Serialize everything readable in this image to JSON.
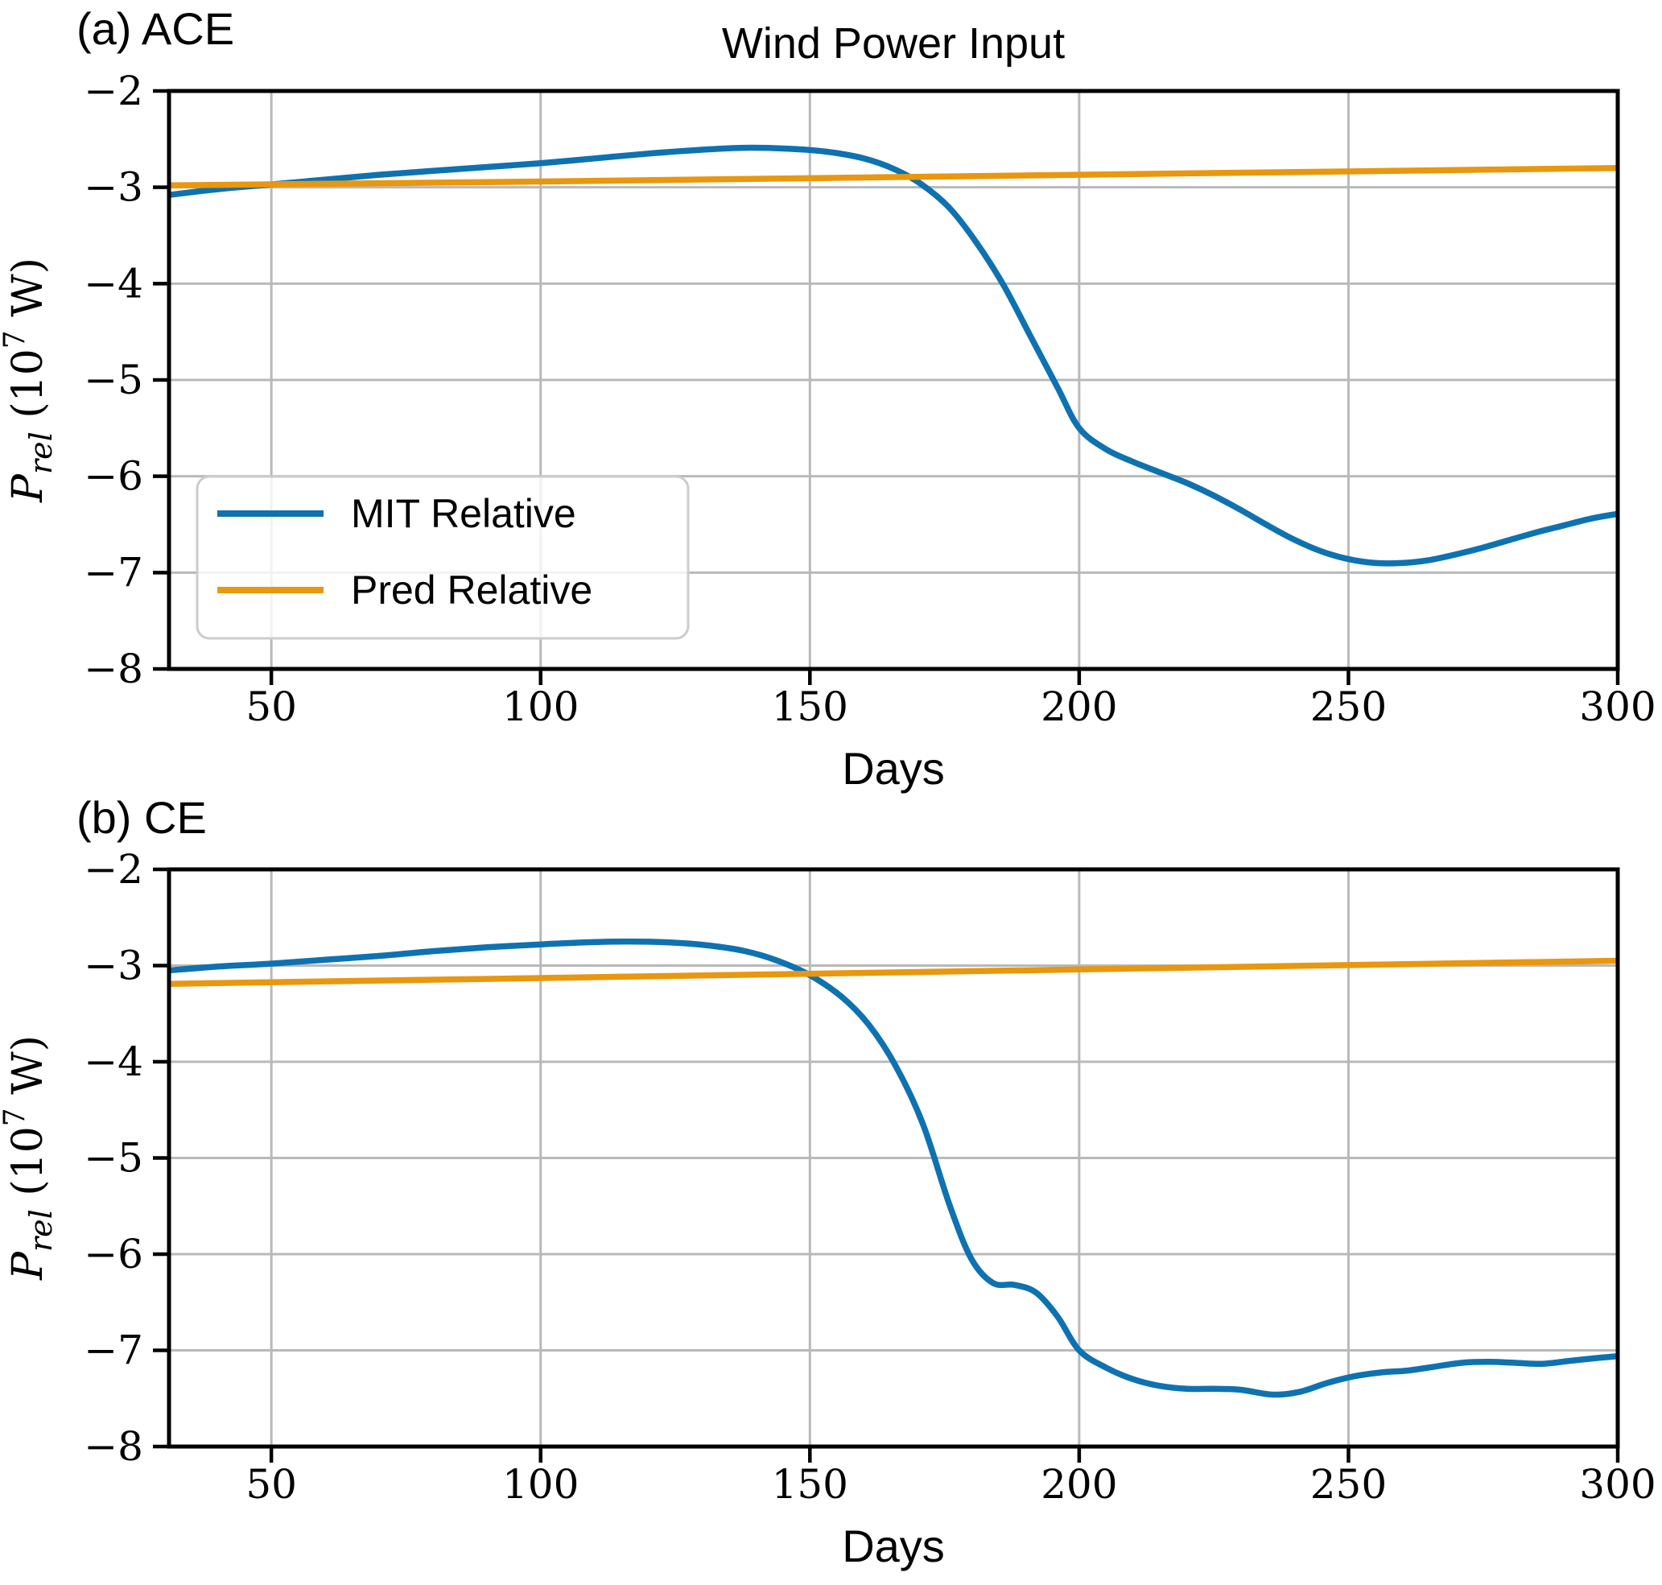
{
  "figure": {
    "background": "#ffffff",
    "grid_color": "#b9b9b9",
    "spine_color": "#000000",
    "legend_border_color": "#cccccc",
    "ylabel_parts": {
      "p": "P",
      "sub": "rel",
      "mid": " (10",
      "exp": "7",
      "end": " W)"
    }
  },
  "chart_data": [
    {
      "type": "line",
      "panel_label": "(a) ACE",
      "title": "Wind Power Input",
      "xlabel": "Days",
      "ylabel": "P_rel (10^7 W)",
      "xlim": [
        31,
        300
      ],
      "ylim": [
        -8,
        -2
      ],
      "xticks": [
        50,
        100,
        150,
        200,
        250,
        300
      ],
      "yticks": [
        -2,
        -3,
        -4,
        -5,
        -6,
        -7,
        -8
      ],
      "grid": true,
      "legend": {
        "position": "lower-left",
        "entries": [
          "MIT Relative",
          "Pred Relative"
        ]
      },
      "series": [
        {
          "name": "MIT Relative",
          "color": "#0e72b1",
          "points": [
            [
              31,
              -3.08
            ],
            [
              40,
              -3.02
            ],
            [
              50,
              -2.97
            ],
            [
              60,
              -2.92
            ],
            [
              70,
              -2.87
            ],
            [
              80,
              -2.83
            ],
            [
              90,
              -2.79
            ],
            [
              100,
              -2.75
            ],
            [
              110,
              -2.7
            ],
            [
              120,
              -2.65
            ],
            [
              130,
              -2.61
            ],
            [
              138,
              -2.59
            ],
            [
              146,
              -2.6
            ],
            [
              153,
              -2.63
            ],
            [
              160,
              -2.7
            ],
            [
              166,
              -2.82
            ],
            [
              171,
              -2.98
            ],
            [
              176,
              -3.22
            ],
            [
              181,
              -3.58
            ],
            [
              186,
              -4.02
            ],
            [
              191,
              -4.55
            ],
            [
              196,
              -5.08
            ],
            [
              200,
              -5.5
            ],
            [
              205,
              -5.72
            ],
            [
              210,
              -5.85
            ],
            [
              215,
              -5.96
            ],
            [
              220,
              -6.07
            ],
            [
              225,
              -6.2
            ],
            [
              230,
              -6.35
            ],
            [
              235,
              -6.51
            ],
            [
              240,
              -6.66
            ],
            [
              245,
              -6.78
            ],
            [
              250,
              -6.86
            ],
            [
              255,
              -6.9
            ],
            [
              260,
              -6.9
            ],
            [
              265,
              -6.87
            ],
            [
              270,
              -6.81
            ],
            [
              275,
              -6.74
            ],
            [
              280,
              -6.66
            ],
            [
              285,
              -6.58
            ],
            [
              290,
              -6.51
            ],
            [
              295,
              -6.44
            ],
            [
              300,
              -6.39
            ]
          ]
        },
        {
          "name": "Pred Relative",
          "color": "#e8970e",
          "points": [
            [
              31,
              -2.98
            ],
            [
              100,
              -2.94
            ],
            [
              200,
              -2.87
            ],
            [
              300,
              -2.8
            ]
          ]
        }
      ]
    },
    {
      "type": "line",
      "panel_label": "(b) CE",
      "title": "",
      "xlabel": "Days",
      "ylabel": "P_rel (10^7 W)",
      "xlim": [
        31,
        300
      ],
      "ylim": [
        -8,
        -2
      ],
      "xticks": [
        50,
        100,
        150,
        200,
        250,
        300
      ],
      "yticks": [
        -2,
        -3,
        -4,
        -5,
        -6,
        -7,
        -8
      ],
      "grid": true,
      "legend": null,
      "series": [
        {
          "name": "MIT Relative",
          "color": "#0e72b1",
          "points": [
            [
              31,
              -3.05
            ],
            [
              40,
              -3.01
            ],
            [
              50,
              -2.98
            ],
            [
              60,
              -2.94
            ],
            [
              70,
              -2.9
            ],
            [
              80,
              -2.85
            ],
            [
              90,
              -2.81
            ],
            [
              100,
              -2.78
            ],
            [
              108,
              -2.76
            ],
            [
              116,
              -2.75
            ],
            [
              124,
              -2.76
            ],
            [
              131,
              -2.79
            ],
            [
              138,
              -2.85
            ],
            [
              144,
              -2.95
            ],
            [
              150,
              -3.1
            ],
            [
              156,
              -3.33
            ],
            [
              161,
              -3.62
            ],
            [
              166,
              -4.05
            ],
            [
              171,
              -4.65
            ],
            [
              176,
              -5.5
            ],
            [
              180,
              -6.05
            ],
            [
              184,
              -6.3
            ],
            [
              188,
              -6.32
            ],
            [
              192,
              -6.4
            ],
            [
              196,
              -6.65
            ],
            [
              200,
              -7.0
            ],
            [
              205,
              -7.18
            ],
            [
              210,
              -7.3
            ],
            [
              215,
              -7.37
            ],
            [
              220,
              -7.4
            ],
            [
              225,
              -7.4
            ],
            [
              230,
              -7.41
            ],
            [
              236,
              -7.46
            ],
            [
              241,
              -7.43
            ],
            [
              246,
              -7.34
            ],
            [
              251,
              -7.27
            ],
            [
              256,
              -7.23
            ],
            [
              261,
              -7.21
            ],
            [
              266,
              -7.17
            ],
            [
              271,
              -7.13
            ],
            [
              276,
              -7.12
            ],
            [
              281,
              -7.13
            ],
            [
              286,
              -7.14
            ],
            [
              291,
              -7.11
            ],
            [
              296,
              -7.08
            ],
            [
              300,
              -7.06
            ]
          ]
        },
        {
          "name": "Pred Relative",
          "color": "#e8970e",
          "points": [
            [
              31,
              -3.19
            ],
            [
              100,
              -3.13
            ],
            [
              200,
              -3.04
            ],
            [
              300,
              -2.95
            ]
          ]
        }
      ]
    }
  ]
}
